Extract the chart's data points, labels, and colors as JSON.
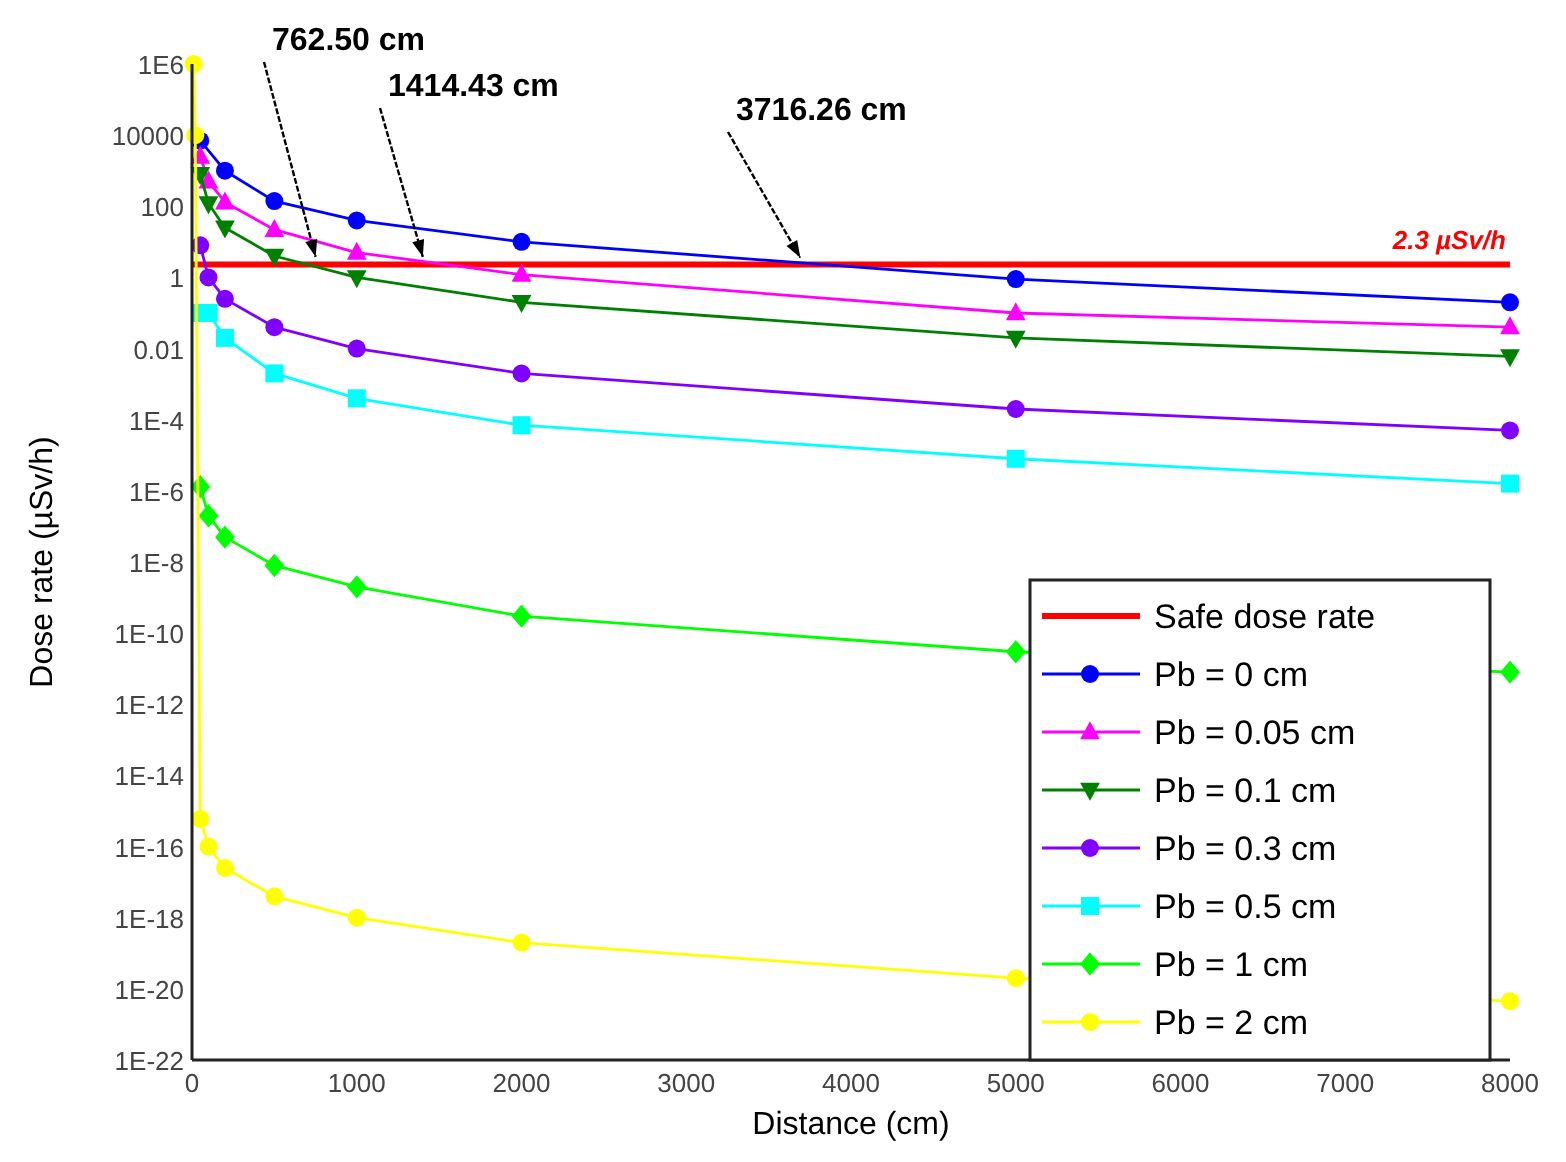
{
  "chart_data": {
    "type": "line",
    "xlabel": "Distance (cm)",
    "ylabel": "Dose rate (µSv/h)",
    "log": "y",
    "xlim": [
      0,
      8000
    ],
    "xticks": [
      0,
      1000,
      2000,
      3000,
      4000,
      5000,
      6000,
      7000,
      8000
    ],
    "ylim": [
      1e-22,
      1000000.0
    ],
    "yticks": [
      {
        "value": 1000000.0,
        "label": "1E6"
      },
      10000,
      100,
      1,
      0.01,
      {
        "value": 0.0001,
        "label": "1E-4"
      },
      {
        "value": 1e-06,
        "label": "1E-6"
      },
      {
        "value": 1e-08,
        "label": "1E-8"
      },
      {
        "value": 1e-10,
        "label": "1E-10"
      },
      {
        "value": 1e-12,
        "label": "1E-12"
      },
      {
        "value": 1e-14,
        "label": "1E-14"
      },
      {
        "value": 1e-16,
        "label": "1E-16"
      },
      {
        "value": 1e-18,
        "label": "1E-18"
      },
      {
        "value": 1e-20,
        "label": "1E-20"
      },
      {
        "value": 1e-22,
        "label": "1E-22"
      }
    ],
    "grid": false,
    "legend": "bottom right",
    "series": [
      {
        "name": "Safe dose rate",
        "color": "#ff0000",
        "marker": "none",
        "x": [
          0,
          8000
        ],
        "values": [
          2.3,
          2.3
        ]
      },
      {
        "name": "Pb = 0 cm",
        "color": "#0000ff",
        "marker": "circle",
        "x": [
          50,
          200,
          500,
          1000,
          2000,
          5000,
          8000
        ],
        "values": [
          7000,
          1000,
          140,
          40,
          10,
          0.9,
          0.2
        ]
      },
      {
        "name": "Pb = 0.05 cm",
        "color": "#ff00ff",
        "marker": "triangle",
        "x": [
          50,
          100,
          200,
          500,
          1000,
          2000,
          5000,
          8000
        ],
        "values": [
          2500,
          500,
          130,
          22,
          5,
          1.2,
          0.1,
          0.04
        ]
      },
      {
        "name": "Pb = 0.1 cm",
        "color": "#008000",
        "marker": "triangle-down",
        "x": [
          50,
          100,
          200,
          500,
          1000,
          2000,
          5000,
          8000
        ],
        "values": [
          800,
          120,
          25,
          4,
          1,
          0.2,
          0.02,
          0.006
        ]
      },
      {
        "name": "Pb = 0.3 cm",
        "color": "#8000ff",
        "marker": "circle",
        "x": [
          50,
          100,
          200,
          500,
          1000,
          2000,
          5000,
          8000
        ],
        "values": [
          8,
          1,
          0.25,
          0.04,
          0.01,
          0.002,
          0.0002,
          5e-05
        ]
      },
      {
        "name": "Pb = 0.5 cm",
        "color": "#00ffff",
        "marker": "square",
        "x": [
          50,
          100,
          200,
          500,
          1000,
          2000,
          5000,
          8000
        ],
        "values": [
          0.1,
          0.1,
          0.02,
          0.002,
          0.0004,
          7e-05,
          8e-06,
          1.6e-06
        ]
      },
      {
        "name": "Pb = 1 cm",
        "color": "#00ff00",
        "marker": "diamond",
        "x": [
          50,
          100,
          200,
          500,
          1000,
          2000,
          5000,
          8000
        ],
        "values": [
          1.3e-06,
          2e-07,
          5e-08,
          8e-09,
          2e-09,
          3e-10,
          3e-11,
          8e-12
        ]
      },
      {
        "name": "Pb = 2 cm",
        "color": "#ffff00",
        "marker": "circle",
        "x": [
          10,
          20,
          50,
          100,
          200,
          500,
          1000,
          2000,
          5000,
          8000
        ],
        "values": [
          1000000.0,
          10000.0,
          6e-16,
          1e-16,
          2.5e-17,
          4e-18,
          1e-18,
          2e-19,
          2e-20,
          4.5e-21
        ]
      }
    ],
    "annotations": [
      {
        "text": "762.50 cm",
        "x": 762.5,
        "y": 2.3
      },
      {
        "text": "1414.43 cm",
        "x": 1414.43,
        "y": 2.3
      },
      {
        "text": "3716.26 cm",
        "x": 3716.26,
        "y": 2.3
      },
      {
        "text": "2.3 µSv/h",
        "x": 8000,
        "y": 2.3
      }
    ]
  }
}
